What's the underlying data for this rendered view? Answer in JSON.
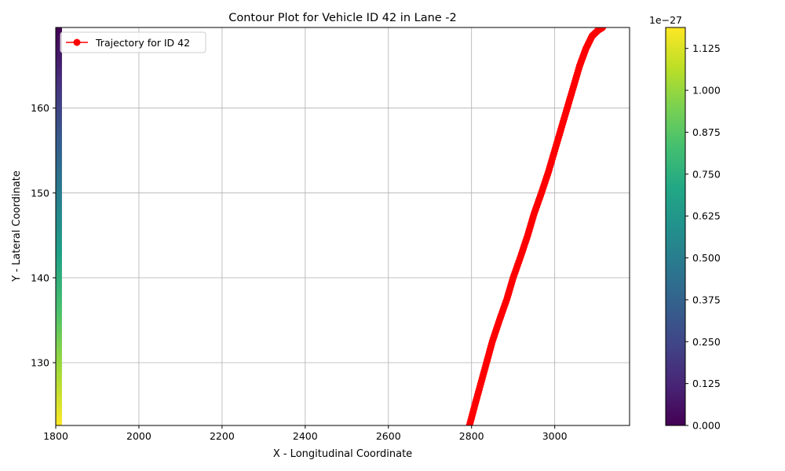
{
  "chart_data": {
    "type": "scatter",
    "title": "Contour Plot for Vehicle ID 42 in Lane -2",
    "xlabel": "X - Longitudinal Coordinate",
    "ylabel": "Y - Lateral Coordinate",
    "xlim": [
      1800,
      3180
    ],
    "ylim": [
      122.6,
      169.5
    ],
    "xticks": [
      1800,
      2000,
      2200,
      2400,
      2600,
      2800,
      3000
    ],
    "yticks": [
      130,
      140,
      150,
      160
    ],
    "grid": true,
    "legend_position": "upper-left",
    "series": [
      {
        "name": "Trajectory for ID 42",
        "type": "line-with-markers",
        "color": "#ff0000",
        "x": [
          2795,
          2808,
          2822,
          2836,
          2850,
          2867,
          2885,
          2900,
          2918,
          2935,
          2950,
          2968,
          2985,
          3000,
          3015,
          3030,
          3045,
          3060,
          3075,
          3090,
          3105,
          3115
        ],
        "y": [
          122.6,
          125.0,
          127.5,
          130.0,
          132.5,
          135.0,
          137.5,
          140.0,
          142.5,
          145.0,
          147.5,
          150.0,
          152.5,
          155.0,
          157.5,
          160.0,
          162.5,
          165.0,
          167.0,
          168.5,
          169.2,
          169.5
        ]
      }
    ],
    "contour": {
      "x_range": [
        1800,
        1815
      ],
      "description_colormap": "viridis",
      "levels_top_to_bottom_colors": [
        "#440154",
        "#46327e",
        "#365c8d",
        "#277f8e",
        "#1fa187",
        "#4ac16d",
        "#a0da39",
        "#fde725"
      ]
    },
    "colorbar": {
      "multiplier_label": "1e−27",
      "min": 0.0,
      "max": 1.1875,
      "ticks": [
        "0.000",
        "0.125",
        "0.250",
        "0.375",
        "0.500",
        "0.625",
        "0.750",
        "0.875",
        "1.000",
        "1.125"
      ],
      "tick_values": [
        0,
        0.125,
        0.25,
        0.375,
        0.5,
        0.625,
        0.75,
        0.875,
        1.0,
        1.125
      ],
      "colormap": [
        "#440154",
        "#482475",
        "#414487",
        "#355f8d",
        "#2a788e",
        "#21918c",
        "#22a884",
        "#44bf70",
        "#7ad151",
        "#bddf26",
        "#fde725"
      ]
    }
  }
}
